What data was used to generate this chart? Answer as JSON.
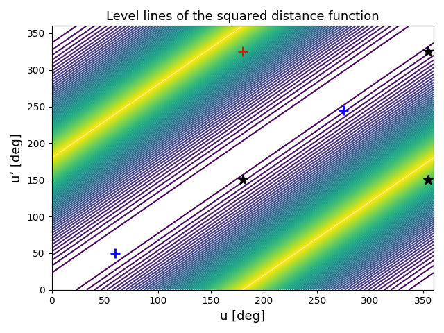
{
  "title": "Level lines of the squared distance function",
  "xlabel": "u [deg]",
  "ylabel": "u’ [deg]",
  "xlim": [
    0,
    360
  ],
  "ylim": [
    0,
    360
  ],
  "yticks": [
    0,
    50,
    100,
    150,
    200,
    250,
    300,
    350
  ],
  "xticks": [
    0,
    50,
    100,
    150,
    200,
    250,
    300,
    350
  ],
  "red_plus": [
    180,
    325
  ],
  "blue_plus_1": [
    275,
    245
  ],
  "blue_plus_2": [
    60,
    50
  ],
  "black_star_1": [
    355,
    325
  ],
  "black_star_2": [
    180,
    150
  ],
  "black_star_3": [
    355,
    150
  ],
  "n_contours": 60,
  "colormap": "viridis",
  "figsize": [
    6.4,
    4.8
  ],
  "dpi": 100,
  "marker_size": 10,
  "marker_lw": 2
}
